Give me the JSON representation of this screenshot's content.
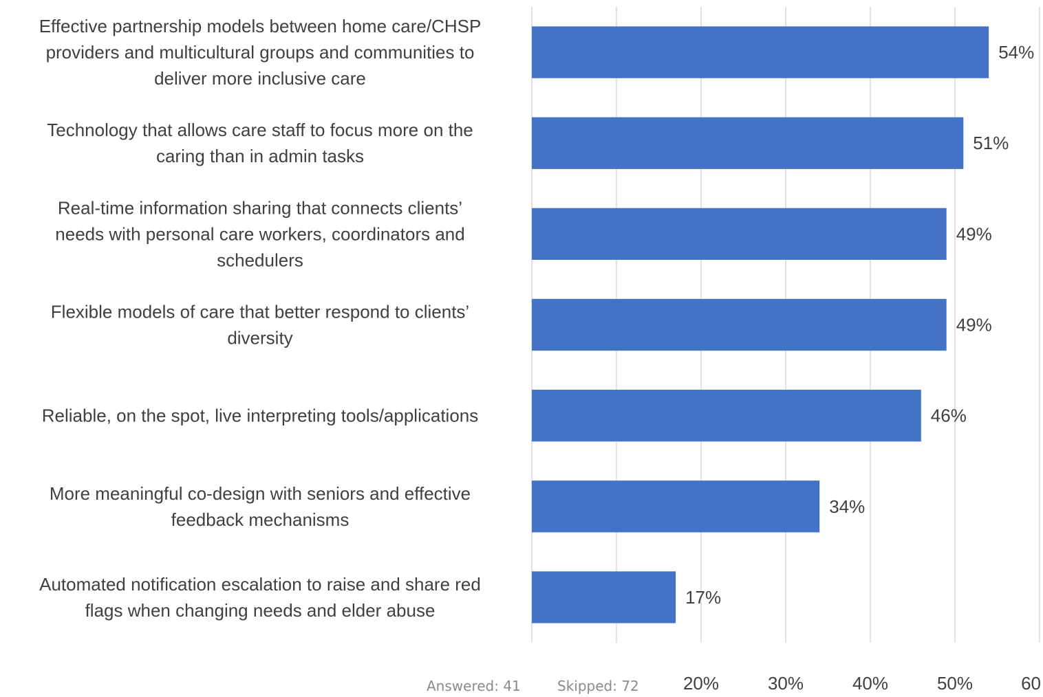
{
  "chart_data": {
    "type": "bar",
    "orientation": "horizontal",
    "categories": [
      "Effective partnership models between home care/CHSP providers and multicultural groups and communities to deliver more inclusive care",
      "Technology that allows care staff to focus more on the caring than in admin tasks",
      "Real-time information sharing that connects clients’ needs with personal care workers, coordinators and schedulers",
      "Flexible models of care that better respond to clients’ diversity",
      "Reliable, on the spot, live interpreting tools/applications",
      "More meaningful co-design with seniors and effective feedback mechanisms",
      "Automated notification escalation to raise and share red flags when changing needs and elder abuse"
    ],
    "category_lines": [
      [
        "Effective partnership models between home care/CHSP",
        "providers and multicultural groups and communities to",
        "deliver more inclusive care"
      ],
      [
        "Technology that allows care staff to focus more on the",
        "caring than in admin tasks"
      ],
      [
        "Real-time information sharing that connects clients’",
        "needs with personal care workers, coordinators and",
        "schedulers"
      ],
      [
        "Flexible models of care that better respond to clients’",
        "diversity"
      ],
      [
        "Reliable, on the spot, live interpreting tools/applications"
      ],
      [
        "More meaningful co-design with seniors and effective",
        "feedback mechanisms"
      ],
      [
        "Automated notification escalation to raise and share red",
        "flags when changing needs and elder abuse"
      ]
    ],
    "values": [
      54,
      51,
      49,
      49,
      46,
      34,
      17
    ],
    "data_labels": [
      "54%",
      "51%",
      "49%",
      "49%",
      "46%",
      "34%",
      "17%"
    ],
    "xlim": [
      0,
      60
    ],
    "xticks": [
      0,
      10,
      20,
      30,
      40,
      50,
      60
    ],
    "xtick_labels": [
      "20%",
      "30%",
      "40%",
      "50%",
      "60"
    ],
    "xtick_label_values": [
      20,
      30,
      40,
      50,
      60
    ],
    "grid": true,
    "bar_color": "#4472C4",
    "grid_color": "#D9D9D9",
    "text_color": "#404040"
  },
  "footer": {
    "answered": "Answered: 41",
    "skipped": "Skipped: 72"
  }
}
